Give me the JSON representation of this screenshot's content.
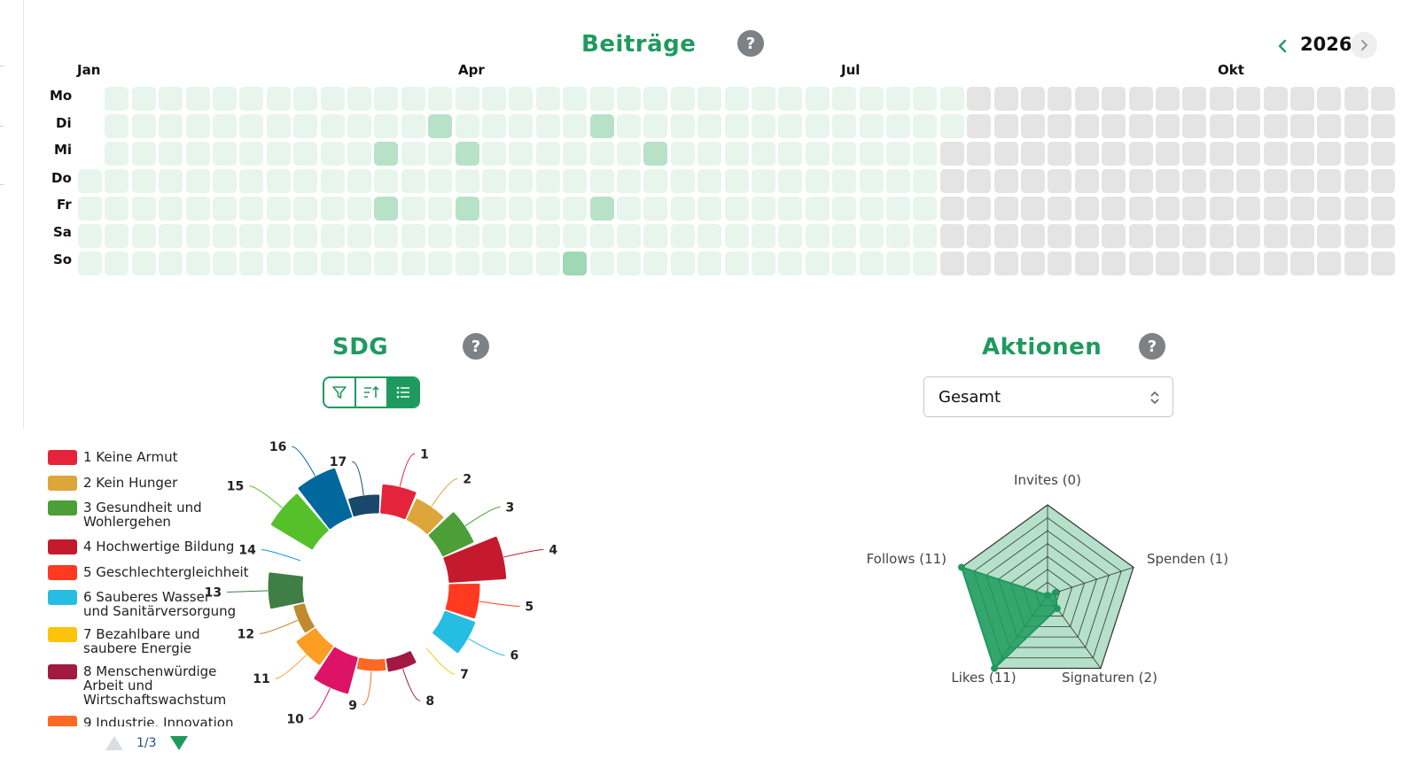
{
  "contributions": {
    "title": "Beiträge",
    "help_label": "?",
    "year": "2026",
    "months": [
      "Jan",
      "Apr",
      "Jul",
      "Okt"
    ],
    "days": [
      "Mo",
      "Di",
      "Mi",
      "Do",
      "Fr",
      "Sa",
      "So"
    ],
    "colors": {
      "empty": "#e7f5ec",
      "future": "#e4e4e4",
      "level1": "#b7e2c8",
      "level2": "#9fd8b4"
    }
  },
  "sdg": {
    "title": "SDG",
    "help_label": "?",
    "toolbar": {
      "filter_icon": "filter-icon",
      "sort_icon": "sort-icon",
      "list_icon": "list-icon"
    },
    "legend": [
      {
        "label": "1 Keine Armut",
        "color": "#e5243b"
      },
      {
        "label": "2 Kein Hunger",
        "color": "#dda63a"
      },
      {
        "label": "3 Gesundheit und Wohlergehen",
        "color": "#4c9f38"
      },
      {
        "label": "4 Hochwertige Bildung",
        "color": "#c5192d"
      },
      {
        "label": "5 Geschlechtergleichheit",
        "color": "#ff3a21"
      },
      {
        "label": "6 Sauberes Wasser und Sanitärversorgung",
        "color": "#26bde2"
      },
      {
        "label": "7 Bezahlbare und saubere Energie",
        "color": "#fcc30b"
      },
      {
        "label": "8 Menschenwürdige Arbeit und Wirtschaftswachstum",
        "color": "#a21942"
      },
      {
        "label": "9 Industrie, Innovation",
        "color": "#fd6925"
      }
    ],
    "pager": "1/3",
    "wheel_labels": [
      "1",
      "2",
      "3",
      "4",
      "5",
      "6",
      "7",
      "8",
      "9",
      "10",
      "11",
      "12",
      "13",
      "14",
      "15",
      "16",
      "17"
    ],
    "wheel_colors": [
      "#e5243b",
      "#dda63a",
      "#4c9f38",
      "#c5192d",
      "#ff3a21",
      "#26bde2",
      "#fcc30b",
      "#a21942",
      "#fd6925",
      "#dd1367",
      "#fd9d24",
      "#bf8b2e",
      "#3f7e44",
      "#0a97d9",
      "#56c02b",
      "#00689d",
      "#19486a"
    ]
  },
  "actions": {
    "title": "Aktionen",
    "help_label": "?",
    "select_value": "Gesamt",
    "chart_data": {
      "type": "radar",
      "axes": [
        "Invites (0)",
        "Spenden (1)",
        "Signaturen (2)",
        "Likes (11)",
        "Follows (11)"
      ],
      "values": [
        0,
        1,
        2,
        11,
        11
      ],
      "max": 11,
      "grid_levels": 7,
      "colors": {
        "fill": "#1f9a5e",
        "grid_fill": "#b5e0c9",
        "grid_line": "#333333"
      }
    }
  }
}
